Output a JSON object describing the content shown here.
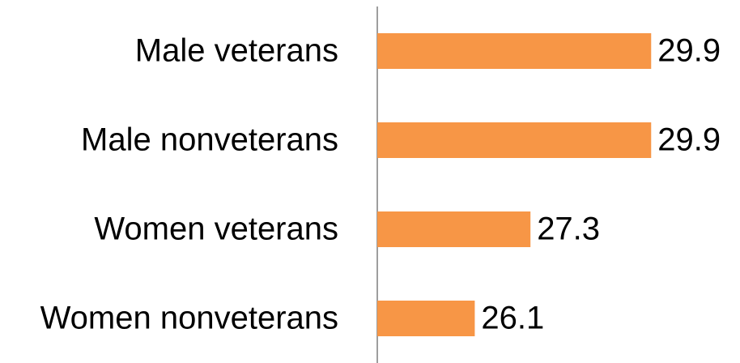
{
  "chart_data": {
    "type": "barh",
    "categories": [
      "Male veterans",
      "Male nonveterans",
      "Women veterans",
      "Women nonveterans"
    ],
    "values": [
      29.9,
      29.9,
      27.3,
      26.1
    ],
    "color": "#f79646",
    "xlim": [
      24,
      30
    ]
  }
}
